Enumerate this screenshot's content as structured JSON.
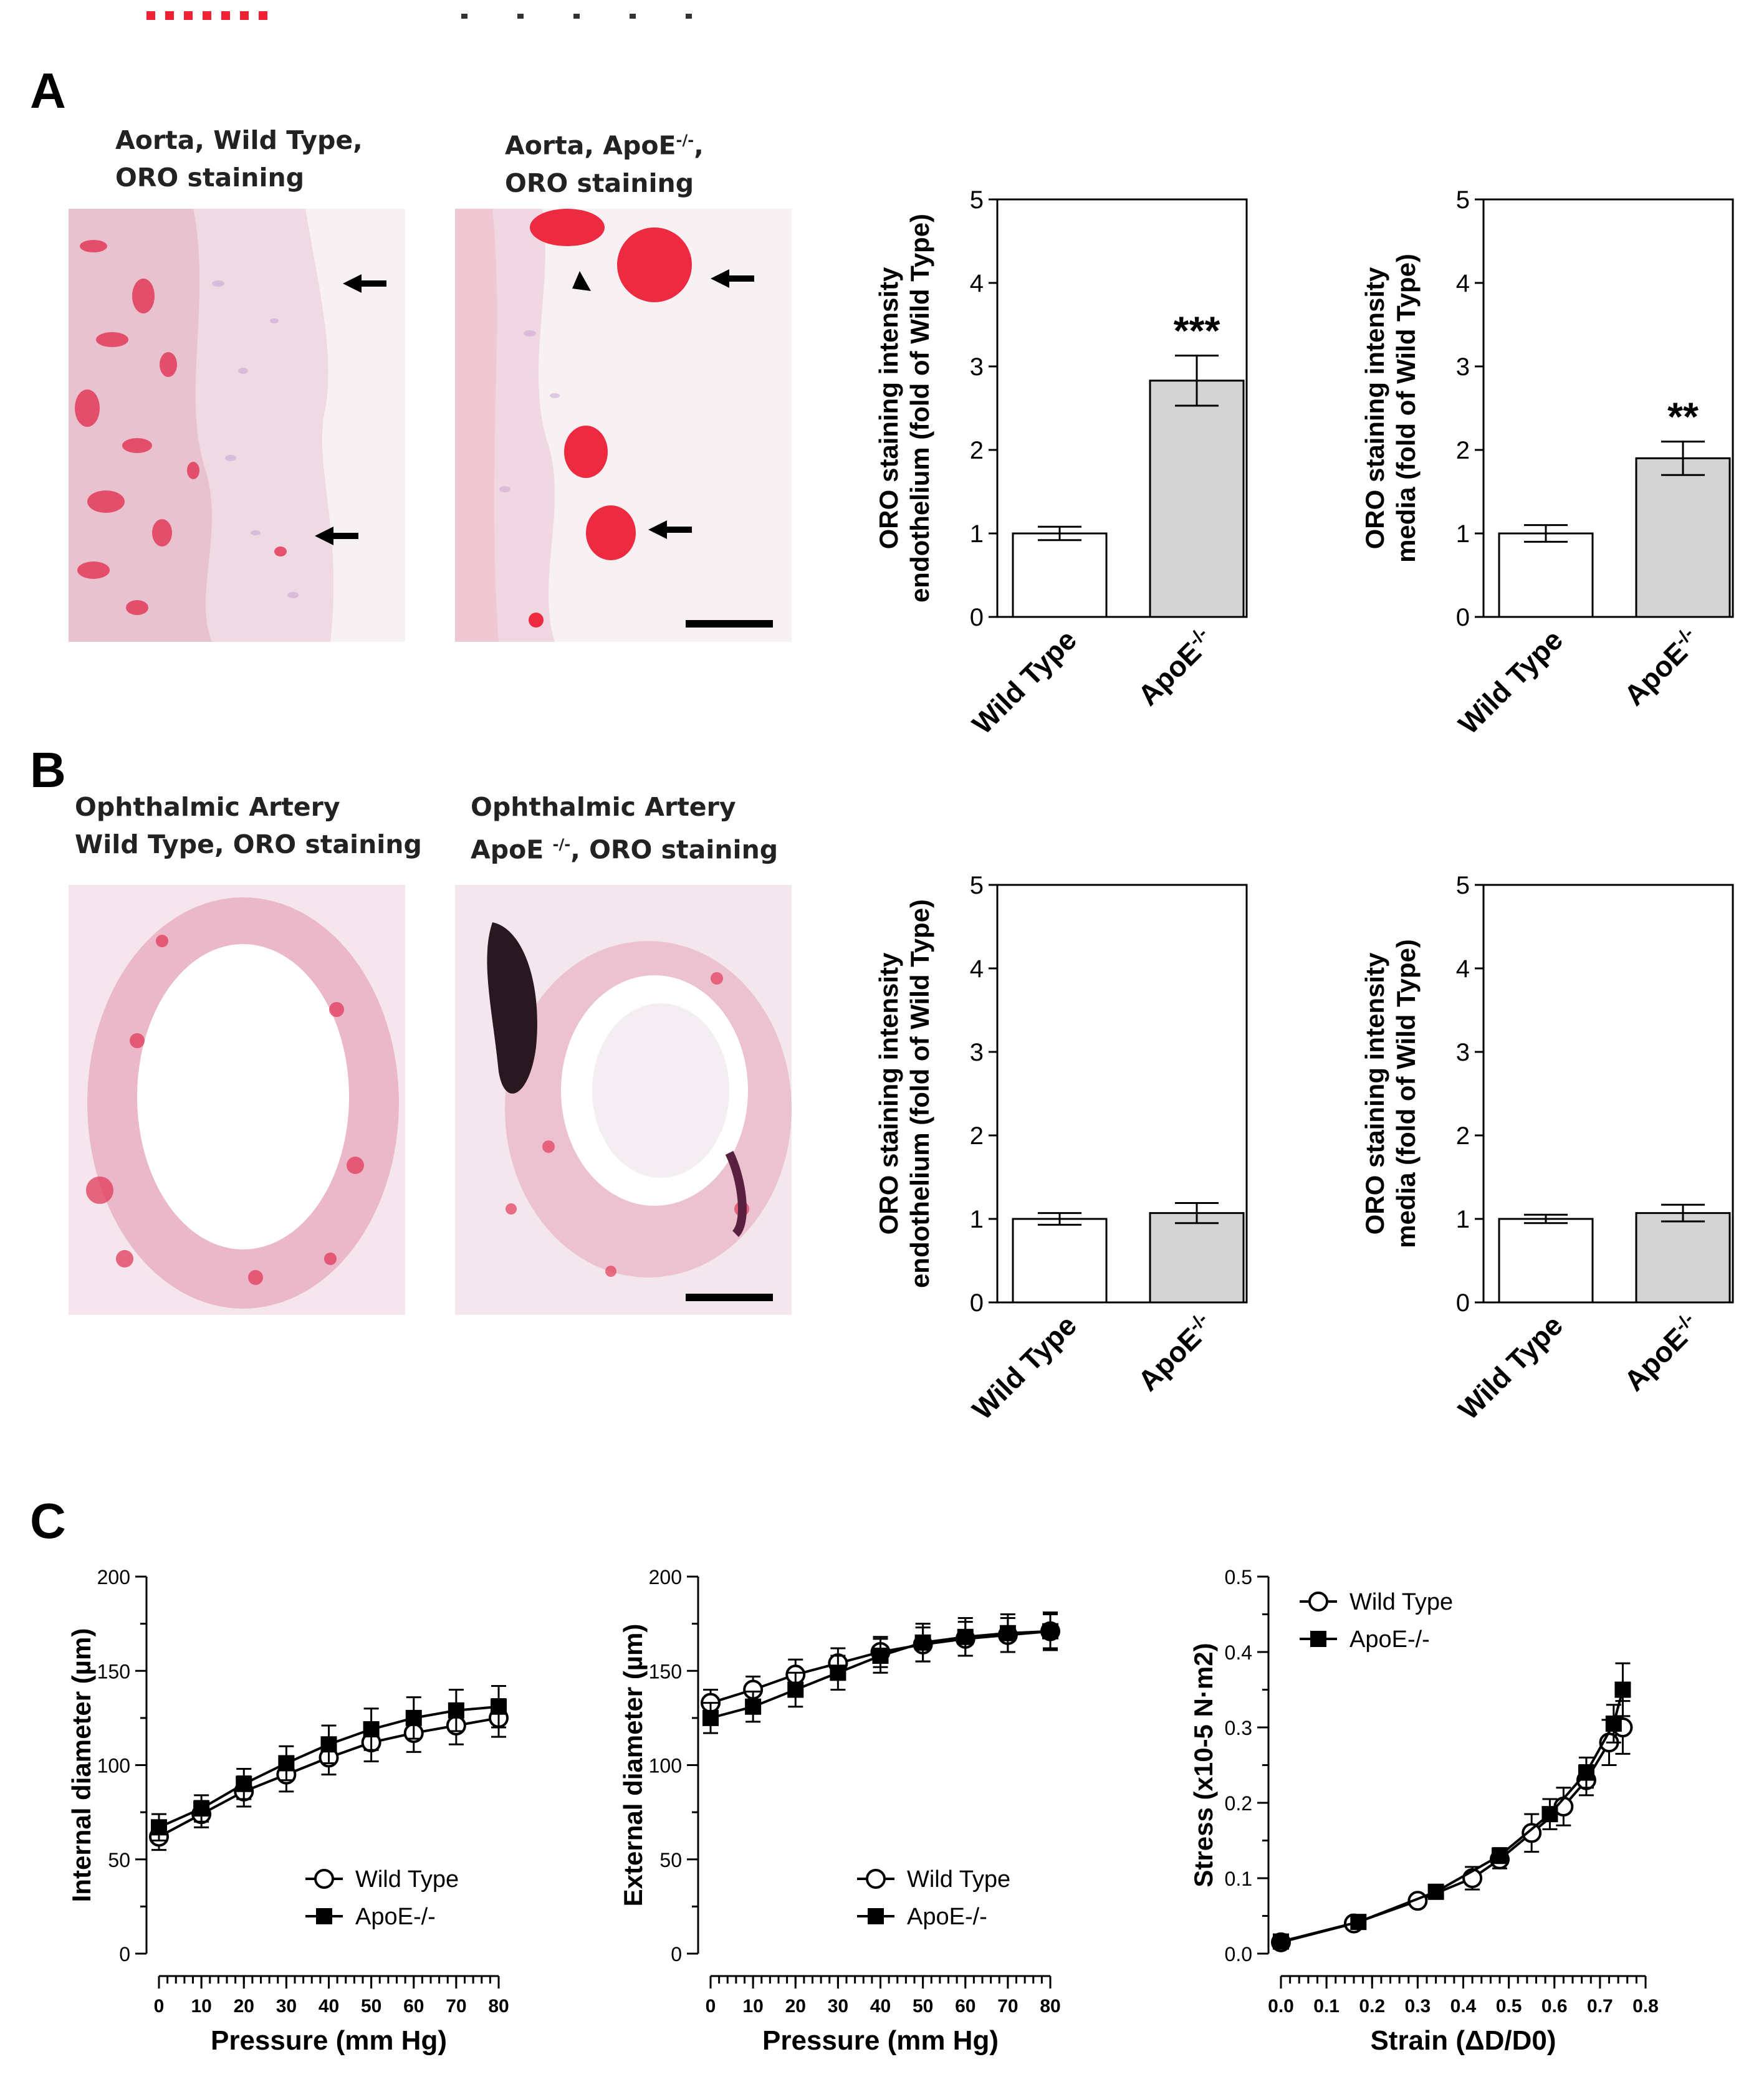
{
  "panels": {
    "a": "A",
    "b": "B",
    "c": "C"
  },
  "captions": {
    "a1": [
      "Aorta, Wild Type,",
      "ORO staining"
    ],
    "a2": [
      "Aorta, ApoE",
      "-/-",
      ",",
      " ORO staining"
    ],
    "b1": [
      "Ophthalmic Artery",
      "Wild Type, ORO staining"
    ],
    "b2": [
      "Ophthalmic Artery",
      "ApoE ",
      "-/-",
      ", ORO staining"
    ]
  },
  "chart_data": [
    {
      "id": "A-endothelium",
      "type": "bar",
      "categories": [
        "Wild Type",
        "ApoE-/-"
      ],
      "values": [
        1.0,
        2.83
      ],
      "errors": [
        0.08,
        0.3
      ],
      "ylabel": [
        "ORO staining intensity",
        "endothelium (fold of Wild Type)"
      ],
      "ylim": [
        0,
        5
      ],
      "yticks": [
        "0",
        "1",
        "2",
        "3",
        "4",
        "5"
      ],
      "significance": [
        "",
        "***"
      ],
      "colors": [
        "#ffffff",
        "#d4d4d4"
      ]
    },
    {
      "id": "A-media",
      "type": "bar",
      "categories": [
        "Wild Type",
        "ApoE-/-"
      ],
      "values": [
        1.0,
        1.9
      ],
      "errors": [
        0.1,
        0.2
      ],
      "ylabel": [
        "ORO staining intensity",
        "media (fold of Wild Type)"
      ],
      "ylim": [
        0,
        5
      ],
      "yticks": [
        "0",
        "1",
        "2",
        "3",
        "4",
        "5"
      ],
      "significance": [
        "",
        "**"
      ],
      "colors": [
        "#ffffff",
        "#d4d4d4"
      ]
    },
    {
      "id": "B-endothelium",
      "type": "bar",
      "categories": [
        "Wild Type",
        "ApoE-/-"
      ],
      "values": [
        1.0,
        1.07
      ],
      "errors": [
        0.07,
        0.12
      ],
      "ylabel": [
        "ORO staining intensity",
        "endothelium (fold of Wild Type)"
      ],
      "ylim": [
        0,
        5
      ],
      "yticks": [
        "0",
        "1",
        "2",
        "3",
        "4",
        "5"
      ],
      "significance": [
        "",
        ""
      ],
      "colors": [
        "#ffffff",
        "#d4d4d4"
      ]
    },
    {
      "id": "B-media",
      "type": "bar",
      "categories": [
        "Wild Type",
        "ApoE-/-"
      ],
      "values": [
        1.0,
        1.07
      ],
      "errors": [
        0.05,
        0.1
      ],
      "ylabel": [
        "ORO staining intensity",
        "media (fold of Wild Type)"
      ],
      "ylim": [
        0,
        5
      ],
      "yticks": [
        "0",
        "1",
        "2",
        "3",
        "4",
        "5"
      ],
      "significance": [
        "",
        ""
      ],
      "colors": [
        "#ffffff",
        "#d4d4d4"
      ]
    },
    {
      "id": "C-internal",
      "type": "line",
      "xlabel": "Pressure (mm Hg)",
      "ylabel": "Internal diameter (µm)",
      "xlim": [
        0,
        80
      ],
      "ylim": [
        0,
        200
      ],
      "xticks": [
        "0",
        "10",
        "20",
        "30",
        "40",
        "50",
        "60",
        "70",
        "80"
      ],
      "yticks": [
        "0",
        "50",
        "100",
        "150",
        "200"
      ],
      "legend": "bottom-right",
      "series": [
        {
          "name": "Wild Type",
          "marker": "open-circle",
          "x": [
            0,
            10,
            20,
            30,
            40,
            50,
            60,
            70,
            80
          ],
          "y": [
            62,
            74,
            86,
            95,
            104,
            112,
            117,
            121,
            125
          ],
          "err": [
            7,
            7,
            8,
            9,
            9,
            10,
            10,
            10,
            10
          ]
        },
        {
          "name": "ApoE-/-",
          "marker": "filled-square",
          "x": [
            0,
            10,
            20,
            30,
            40,
            50,
            60,
            70,
            80
          ],
          "y": [
            67,
            77,
            90,
            101,
            111,
            119,
            125,
            129,
            131
          ],
          "err": [
            7,
            7,
            8,
            9,
            10,
            11,
            11,
            11,
            11
          ]
        }
      ]
    },
    {
      "id": "C-external",
      "type": "line",
      "xlabel": "Pressure (mm Hg)",
      "ylabel": "External diameter (µm)",
      "xlim": [
        0,
        80
      ],
      "ylim": [
        0,
        200
      ],
      "xticks": [
        "0",
        "10",
        "20",
        "30",
        "40",
        "50",
        "60",
        "70",
        "80"
      ],
      "yticks": [
        "0",
        "50",
        "100",
        "150",
        "200"
      ],
      "legend": "bottom-right",
      "series": [
        {
          "name": "Wild Type",
          "marker": "open-circle",
          "x": [
            0,
            10,
            20,
            30,
            40,
            50,
            60,
            70,
            80
          ],
          "y": [
            133,
            140,
            148,
            154,
            160,
            164,
            167,
            169,
            171
          ],
          "err": [
            7,
            7,
            8,
            8,
            8,
            9,
            9,
            9,
            9
          ]
        },
        {
          "name": "ApoE-/-",
          "marker": "filled-square",
          "x": [
            0,
            10,
            20,
            30,
            40,
            50,
            60,
            70,
            80
          ],
          "y": [
            125,
            131,
            140,
            149,
            158,
            165,
            168,
            170,
            171
          ],
          "err": [
            8,
            8,
            9,
            9,
            9,
            10,
            10,
            10,
            10
          ]
        }
      ]
    },
    {
      "id": "C-stress",
      "type": "line",
      "xlabel": "Strain (ΔD/D0)",
      "ylabel": "Stress (x10-5 N·m2)",
      "xlim": [
        0,
        0.8
      ],
      "ylim": [
        0,
        0.5
      ],
      "xticks": [
        "0.0",
        "0.1",
        "0.2",
        "0.3",
        "0.4",
        "0.5",
        "0.6",
        "0.7",
        "0.8"
      ],
      "yticks": [
        "0.0",
        "0.1",
        "0.2",
        "0.3",
        "0.4",
        "0.5"
      ],
      "legend": "top-left",
      "series": [
        {
          "name": "Wild Type",
          "marker": "open-circle",
          "x": [
            0.0,
            0.16,
            0.3,
            0.42,
            0.48,
            0.55,
            0.62,
            0.67,
            0.72,
            0.75
          ],
          "y": [
            0.015,
            0.04,
            0.07,
            0.1,
            0.125,
            0.16,
            0.195,
            0.23,
            0.28,
            0.3
          ],
          "err": [
            0.004,
            0.005,
            0.006,
            0.015,
            0.012,
            0.025,
            0.025,
            0.02,
            0.03,
            0.035
          ]
        },
        {
          "name": "ApoE-/-",
          "marker": "filled-square",
          "x": [
            0.0,
            0.17,
            0.34,
            0.48,
            0.59,
            0.67,
            0.73,
            0.75
          ],
          "y": [
            0.016,
            0.042,
            0.082,
            0.13,
            0.185,
            0.24,
            0.305,
            0.35
          ],
          "err": [
            0.004,
            0.004,
            0.005,
            0.01,
            0.02,
            0.02,
            0.025,
            0.035
          ]
        }
      ]
    }
  ]
}
